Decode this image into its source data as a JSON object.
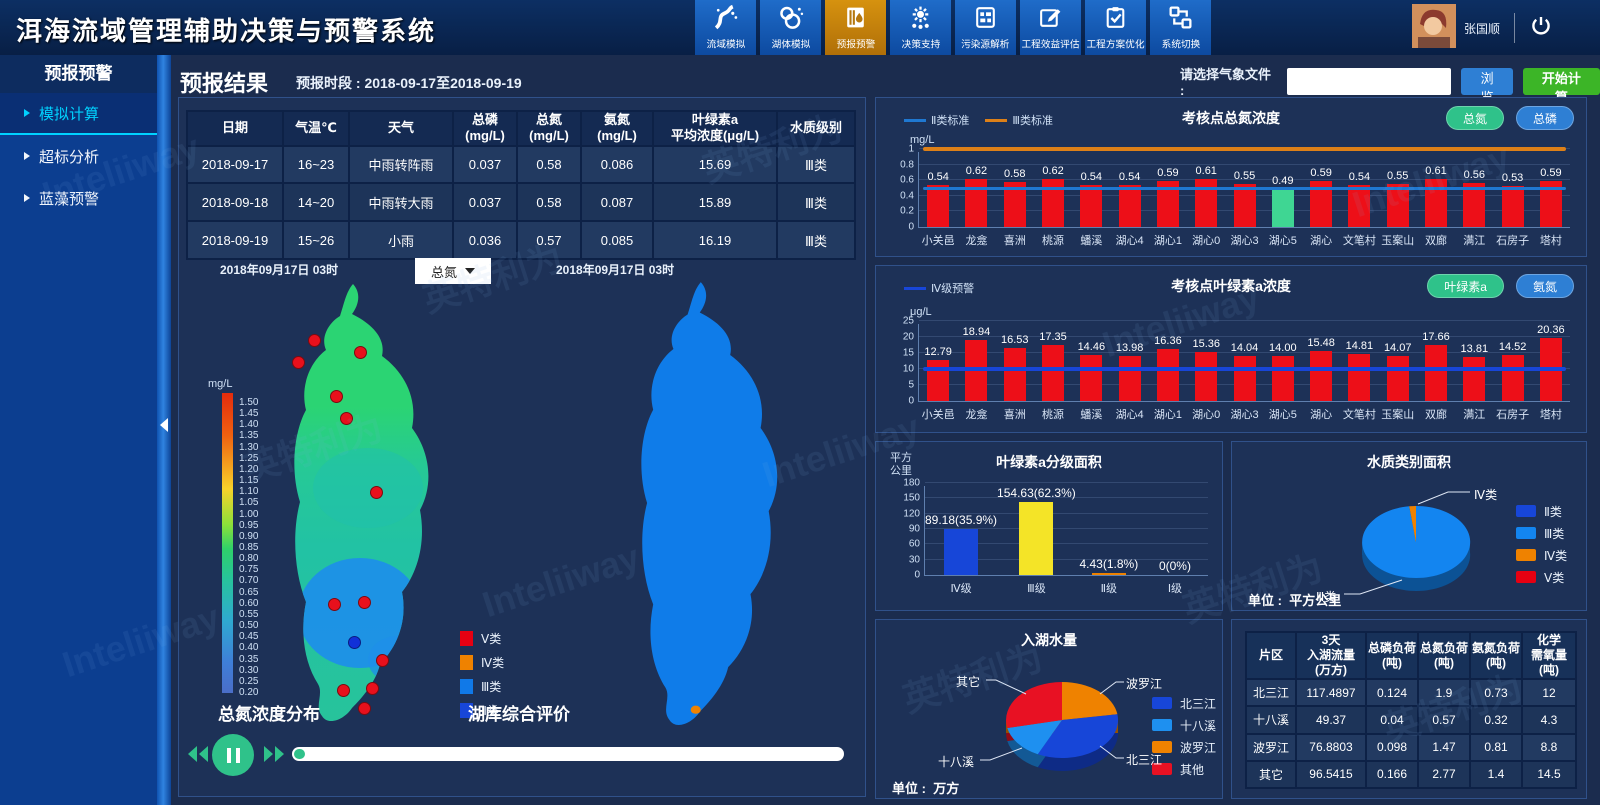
{
  "header": {
    "title": "洱海流域管理辅助决策与预警系统",
    "nav": [
      {
        "label": "流域模拟",
        "icon": "watershed-sim-icon",
        "active": false
      },
      {
        "label": "湖体模拟",
        "icon": "lake-sim-icon",
        "active": false
      },
      {
        "label": "预报预警",
        "icon": "forecast-warning-icon",
        "active": true
      },
      {
        "label": "决策支持",
        "icon": "decision-support-icon",
        "active": false
      },
      {
        "label": "污染源解析",
        "icon": "pollution-source-icon",
        "active": false
      },
      {
        "label": "工程效益评估",
        "icon": "benefit-evaluation-icon",
        "active": false
      },
      {
        "label": "工程方案优化",
        "icon": "plan-optimization-icon",
        "active": false
      },
      {
        "label": "系统切换",
        "icon": "system-switch-icon",
        "active": false
      }
    ],
    "user": {
      "name": "张国顺"
    }
  },
  "sidebar": {
    "title": "预报预警",
    "items": [
      {
        "label": "模拟计算",
        "active": true
      },
      {
        "label": "超标分析",
        "active": false
      },
      {
        "label": "蓝藻预警",
        "active": false
      }
    ]
  },
  "toolbar": {
    "page_title": "预报结果",
    "period_label": "预报时段 :",
    "period_value": "2018-09-17至2018-09-19",
    "weather_file_label": "请选择气象文件 :",
    "weather_file_value": "",
    "browse_label": "浏览",
    "start_label": "开始计算"
  },
  "forecast_table": {
    "headers": [
      [
        "日期"
      ],
      [
        "气温℃"
      ],
      [
        "天气"
      ],
      [
        "总磷",
        "(mg/L)"
      ],
      [
        "总氮",
        "(mg/L)"
      ],
      [
        "氨氮",
        "(mg/L)"
      ],
      [
        "叶绿素a",
        "平均浓度(μg/L)"
      ],
      [
        "水质级别"
      ]
    ],
    "rows": [
      [
        "2018-09-17",
        "16~23",
        "中雨转阵雨",
        "0.037",
        "0.58",
        "0.086",
        "15.69",
        "Ⅲ类"
      ],
      [
        "2018-09-18",
        "14~20",
        "中雨转大雨",
        "0.037",
        "0.58",
        "0.087",
        "15.89",
        "Ⅲ类"
      ],
      [
        "2018-09-19",
        "15~26",
        "小雨",
        "0.036",
        "0.57",
        "0.085",
        "16.19",
        "Ⅲ类"
      ]
    ]
  },
  "maps": {
    "left": {
      "datetime": "2018年09月17日 03时",
      "dropdown_value": "总氮",
      "caption": "总氮浓度分布",
      "colorbar": {
        "unit": "mg/L",
        "max": 1.5,
        "min": 0.2,
        "step": 0.05
      }
    },
    "right": {
      "datetime": "2018年09月17日 03时",
      "caption": "湖库综合评价",
      "legend": [
        {
          "label": "Ⅴ类",
          "color": "#e60012"
        },
        {
          "label": "Ⅳ类",
          "color": "#ef8200"
        },
        {
          "label": "Ⅲ类",
          "color": "#1079e8"
        },
        {
          "label": "Ⅱ类",
          "color": "#1746d8"
        }
      ]
    }
  },
  "playback": {
    "progress": 0.02
  },
  "chart_data": [
    {
      "type": "bar",
      "title": "考核点总氮浓度",
      "unit": "mg/L",
      "legend": [
        {
          "label": "Ⅱ类标准",
          "color": "#1f78d1"
        },
        {
          "label": "Ⅲ类标准",
          "color": "#dd8018"
        }
      ],
      "buttons": [
        {
          "label": "总氮",
          "color": "#2fc28a"
        },
        {
          "label": "总磷",
          "color": "#2e7fd4"
        }
      ],
      "categories": [
        "小关邑",
        "龙龛",
        "喜洲",
        "桃源",
        "蟠溪",
        "湖心4",
        "湖心1",
        "湖心0",
        "湖心3",
        "湖心5",
        "湖心",
        "文笔村",
        "玉案山",
        "双廊",
        "满江",
        "石房子",
        "塔村"
      ],
      "values": [
        0.54,
        0.62,
        0.58,
        0.62,
        0.54,
        0.54,
        0.59,
        0.61,
        0.55,
        0.49,
        0.59,
        0.54,
        0.55,
        0.61,
        0.56,
        0.53,
        0.59
      ],
      "value_labels": [
        "0.54",
        "0.62",
        "0.58",
        "0.62",
        "0.54",
        "0.54",
        "0.59",
        "0.61",
        "0.55",
        "0.49",
        "0.59",
        "0.54",
        "0.55",
        "0.61",
        "0.56",
        "0.53",
        "0.59"
      ],
      "bar_color": "#ed0f18",
      "highlight_index": 9,
      "highlight_color": "#3fd693",
      "ylim": [
        0,
        1
      ],
      "ytick_step": 0.2,
      "ref_lines": [
        {
          "value": 0.5,
          "color": "#1f78d1",
          "thickness": 3
        },
        {
          "value": 1.0,
          "color": "#dd8018",
          "thickness": 4
        }
      ]
    },
    {
      "type": "bar",
      "title": "考核点叶绿素a浓度",
      "unit": "μg/L",
      "legend": [
        {
          "label": "Ⅳ级预警",
          "color": "#1846d8"
        }
      ],
      "buttons": [
        {
          "label": "叶绿素a",
          "color": "#2fc28a"
        },
        {
          "label": "氨氮",
          "color": "#2e7fd4"
        }
      ],
      "categories": [
        "小关邑",
        "龙龛",
        "喜洲",
        "桃源",
        "蟠溪",
        "湖心4",
        "湖心1",
        "湖心0",
        "湖心3",
        "湖心5",
        "湖心",
        "文笔村",
        "玉案山",
        "双廊",
        "满江",
        "石房子",
        "塔村"
      ],
      "values": [
        12.79,
        18.94,
        16.53,
        17.35,
        14.46,
        13.98,
        16.36,
        15.36,
        14.04,
        14.0,
        15.48,
        14.81,
        14.07,
        17.66,
        13.81,
        14.52,
        20.36
      ],
      "value_labels": [
        "12.79",
        "18.94",
        "16.53",
        "17.35",
        "14.46",
        "13.98",
        "16.36",
        "15.36",
        "14.04",
        "14.00",
        "15.48",
        "14.81",
        "14.07",
        "17.66",
        "13.81",
        "14.52",
        "20.36"
      ],
      "bar_color": "#ed0f18",
      "ylim": [
        0,
        25
      ],
      "ytick_step": 5,
      "ref_lines": [
        {
          "value": 10,
          "color": "#1846d8",
          "thickness": 4
        }
      ]
    },
    {
      "type": "bar",
      "title": "叶绿素a分级面积",
      "unit": "平方公里",
      "unit_lines": [
        "平方",
        "公里"
      ],
      "categories": [
        "Ⅳ级",
        "Ⅲ级",
        "Ⅱ级",
        "Ⅰ级"
      ],
      "values": [
        89.18,
        154.63,
        4.43,
        0
      ],
      "value_labels": [
        "89.18(35.9%)",
        "154.63(62.3%)",
        "4.43(1.8%)",
        "0(0%)"
      ],
      "colors": [
        "#1746d8",
        "#f4e427",
        "#ef8200",
        "#ef8200"
      ],
      "ylim": [
        0,
        180
      ],
      "ytick_step": 30
    },
    {
      "type": "pie",
      "title": "水质类别面积",
      "unit_label": "单位 :",
      "unit": "平方公里",
      "slices": [
        {
          "label": "Ⅱ类",
          "value": 0,
          "color": "#1746d8"
        },
        {
          "label": "Ⅲ类",
          "value": 98,
          "color": "#1385f0"
        },
        {
          "label": "Ⅳ类",
          "value": 2,
          "color": "#ef8200"
        },
        {
          "label": "Ⅴ类",
          "value": 0,
          "color": "#e60012"
        }
      ],
      "callouts": [
        "Ⅳ类",
        "Ⅲ类"
      ]
    },
    {
      "type": "pie",
      "title": "入湖水量",
      "unit_label": "单位 :",
      "unit": "万方",
      "slices": [
        {
          "label": "波罗江",
          "value": 76.8803,
          "color": "#ef8200"
        },
        {
          "label": "北三江",
          "value": 117.4897,
          "color": "#1746d8"
        },
        {
          "label": "十八溪",
          "value": 49.37,
          "color": "#1e90f0"
        },
        {
          "label": "其它",
          "value": 96.5415,
          "color": "#e81123"
        }
      ],
      "legend": [
        {
          "label": "北三江",
          "color": "#1746d8"
        },
        {
          "label": "十八溪",
          "color": "#1e90f0"
        },
        {
          "label": "波罗江",
          "color": "#ef8200"
        },
        {
          "label": "其他",
          "color": "#e81123"
        }
      ]
    },
    {
      "type": "table",
      "headers": [
        [
          "片区"
        ],
        [
          "3天",
          "入湖流量",
          "(万方)"
        ],
        [
          "总磷负荷",
          "(吨)"
        ],
        [
          "总氮负荷",
          "(吨)"
        ],
        [
          "氨氮负荷",
          "(吨)"
        ],
        [
          "化学",
          "需氧量",
          "(吨)"
        ]
      ],
      "rows": [
        [
          "北三江",
          "117.4897",
          "0.124",
          "1.9",
          "0.73",
          "12"
        ],
        [
          "十八溪",
          "49.37",
          "0.04",
          "0.57",
          "0.32",
          "4.3"
        ],
        [
          "波罗江",
          "76.8803",
          "0.098",
          "1.47",
          "0.81",
          "8.8"
        ],
        [
          "其它",
          "96.5415",
          "0.166",
          "2.77",
          "1.4",
          "14.5"
        ]
      ]
    }
  ],
  "watermark": {
    "texts": [
      "Inteliiway",
      "英特利为"
    ]
  }
}
